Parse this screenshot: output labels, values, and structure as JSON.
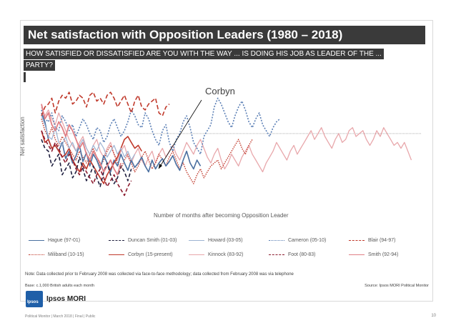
{
  "title": "Net satisfaction with Opposition Leaders (1980 – 2018)",
  "question_line1": "HOW SATISFIED OR DISSATISFIED ARE YOU WITH THE WAY ... IS DOING HIS JOB AS LEADER OF THE ...",
  "question_line2": "PARTY?",
  "brand": "Ipsos MORI",
  "logo_text": "Ipsos",
  "note": "Note: Data collected prior to February 2008 was collected via face-to-face methodology; data collected from February 2008 was via telephone",
  "base": "Base: c.1,000 British adults each month",
  "source": "Source: Ipsos MORI Political Monitor",
  "footer": "Political Monitor | March 2018 | Final | Public",
  "page_number": "10",
  "colors": {
    "blue": "#4a6fa0",
    "navy": "#1f1f3f",
    "light_blue": "#9db3d2",
    "dark_red": "#8b1a2e",
    "red": "#c0392b",
    "pink": "#e07f85",
    "light_pink": "#e8a7ab"
  },
  "chart_data": {
    "type": "line",
    "title": "",
    "xlabel": "Number of months after becoming Opposition Leader",
    "ylabel": "Net satisfaction",
    "annotation": "Corbyn",
    "xlim": [
      0,
      110
    ],
    "ylim": [
      -50,
      30
    ],
    "grid": false,
    "legend_position": "bottom",
    "series": [
      {
        "name": "Hague (97-01)",
        "color": "#4a6fa0",
        "dash": "solid",
        "width": 1.6,
        "values": [
          14,
          8,
          -4,
          -10,
          -8,
          -12,
          -6,
          -17,
          -12,
          -20,
          -15,
          -8,
          -19,
          -13,
          -22,
          -14,
          -18,
          -24,
          -15,
          -20,
          -26,
          -18,
          -22,
          -14,
          -20,
          -25,
          -18,
          -23,
          -20,
          -16,
          -22,
          -26,
          -18,
          -24,
          -20,
          -17,
          -22,
          -19,
          -15,
          -21,
          -25,
          -18,
          -12,
          -20,
          -24,
          -18,
          -22
        ]
      },
      {
        "name": "Duncan Smith (01-03)",
        "color": "#1f1f3f",
        "dash": "5,3",
        "width": 1.6,
        "values": [
          -4,
          -10,
          -12,
          -22,
          -18,
          -14,
          -28,
          -24,
          -20,
          -30,
          -26,
          -16,
          -24,
          -32,
          -28,
          -22,
          -30,
          -36,
          -26,
          -20,
          -28,
          -34,
          -30,
          -22,
          -26,
          -32,
          -24
        ]
      },
      {
        "name": "Howard (03-05)",
        "color": "#9db3d2",
        "dash": "solid",
        "width": 1.2,
        "values": [
          12,
          6,
          -2,
          -4,
          4,
          -6,
          -8,
          -2,
          -10,
          -6,
          -12,
          -8,
          -4,
          -10,
          -14,
          -8,
          -12,
          -6,
          -10,
          -16,
          -12,
          -8,
          -14,
          -10,
          -16,
          -12,
          -18,
          -14
        ]
      },
      {
        "name": "Cameron (05-10)",
        "color": "#5b7fb5",
        "dash": "2,2",
        "width": 1.6,
        "values": [
          16,
          10,
          8,
          14,
          4,
          2,
          12,
          8,
          2,
          6,
          -2,
          4,
          10,
          6,
          0,
          -4,
          4,
          2,
          -6,
          -2,
          6,
          10,
          4,
          -2,
          2,
          8,
          16,
          12,
          6,
          4,
          14,
          10,
          2,
          -4,
          -8,
          2,
          6,
          -6,
          -12,
          -4,
          0,
          8,
          12,
          4,
          -6,
          -10,
          -14,
          -2,
          2,
          6,
          18,
          24,
          20,
          14,
          8,
          4,
          12,
          18,
          22,
          16,
          8,
          4,
          10,
          14,
          6,
          2,
          -2,
          4,
          8,
          10
        ]
      },
      {
        "name": "Blair (94-97)",
        "color": "#c0392b",
        "dash": "6,3",
        "width": 1.6,
        "values": [
          12,
          18,
          20,
          24,
          14,
          22,
          26,
          24,
          28,
          20,
          22,
          26,
          24,
          18,
          26,
          28,
          22,
          24,
          20,
          26,
          28,
          24,
          18,
          22,
          26,
          20,
          14,
          22,
          26,
          18,
          16,
          20,
          22,
          24,
          14,
          12,
          18,
          20
        ]
      },
      {
        "name": "Miliband (10-15)",
        "color": "#c0392b",
        "dash": "1.5,1.5",
        "width": 1.4,
        "values": [
          10,
          2,
          -2,
          4,
          -4,
          -8,
          -2,
          -6,
          -10,
          -14,
          -18,
          -12,
          -16,
          -20,
          -14,
          -10,
          -16,
          -22,
          -18,
          -12,
          -8,
          -14,
          -20,
          -24,
          -18,
          -14,
          -20,
          -26,
          -22,
          -16,
          -12,
          -18,
          -24,
          -20,
          -14,
          -18,
          -22,
          -16,
          -12,
          -18,
          -24,
          -20,
          -26,
          -30,
          -34,
          -28,
          -24,
          -30,
          -26,
          -22,
          -20,
          -18,
          -24,
          -20,
          -16,
          -12,
          -8,
          -4,
          -10,
          -14,
          -8,
          -4
        ]
      },
      {
        "name": "Corbyn (15-present)",
        "color": "#c0392b",
        "dash": "solid",
        "width": 1.6,
        "values": [
          2,
          -6,
          -4,
          -10,
          -8,
          -12,
          -16,
          -14,
          -10,
          -18,
          -22,
          -26,
          -20,
          -24,
          -18,
          -22,
          -26,
          -30,
          -34,
          -28,
          -24,
          -20,
          -16,
          -10,
          -4,
          -2,
          -6,
          -10,
          -8,
          -12
        ]
      },
      {
        "name": "Kinnock (83-92)",
        "color": "#e8a7ab",
        "dash": "solid",
        "width": 1.3,
        "values": [
          18,
          12,
          16,
          10,
          6,
          14,
          8,
          2,
          -4,
          -8,
          -12,
          -6,
          -2,
          -10,
          -14,
          -8,
          -4,
          -12,
          -16,
          -10,
          -6,
          -14,
          -18,
          -12,
          -8,
          -16,
          -20,
          -14,
          -10,
          -18,
          -22,
          -16,
          -12,
          -20,
          -14,
          -10,
          -16,
          -12,
          -8,
          -14,
          -18,
          -12,
          -6,
          -10,
          -14,
          -8,
          -4,
          -10,
          -16,
          -20,
          -14,
          -10,
          -18,
          -24,
          -20,
          -14,
          -18,
          -22,
          -16,
          -12,
          -8,
          -14,
          -18,
          -22,
          -26,
          -20,
          -16,
          -12,
          -6,
          -10,
          -14,
          -18,
          -12,
          -8,
          -14,
          -10,
          -6,
          -2,
          2,
          -4,
          0,
          4,
          -2,
          -6,
          -10,
          -4,
          0,
          -6,
          -4,
          2,
          4,
          -2,
          0,
          2,
          -4,
          -8,
          -4,
          2,
          -2,
          4,
          0,
          -4,
          -8,
          -6,
          -10,
          -6,
          -12,
          -18
        ]
      },
      {
        "name": "Foot (80-83)",
        "color": "#8b1a2e",
        "dash": "5,3",
        "width": 1.6,
        "values": [
          2,
          -4,
          -8,
          -12,
          -6,
          -10,
          -16,
          -20,
          -14,
          -18,
          -24,
          -28,
          -22,
          -26,
          -30,
          -34,
          -28,
          -24,
          -30,
          -36,
          -32,
          -28,
          -34,
          -38,
          -42,
          -36,
          -32
        ]
      },
      {
        "name": "Smith (92-94)",
        "color": "#e07f85",
        "dash": "solid",
        "width": 1.8,
        "values": [
          20,
          10,
          14,
          6,
          2,
          8,
          4,
          -2,
          6,
          2,
          -4,
          -10,
          -6,
          -14,
          -18,
          -12,
          -16,
          -20,
          -26,
          -22,
          -18,
          -24,
          -28,
          -20
        ]
      }
    ]
  }
}
